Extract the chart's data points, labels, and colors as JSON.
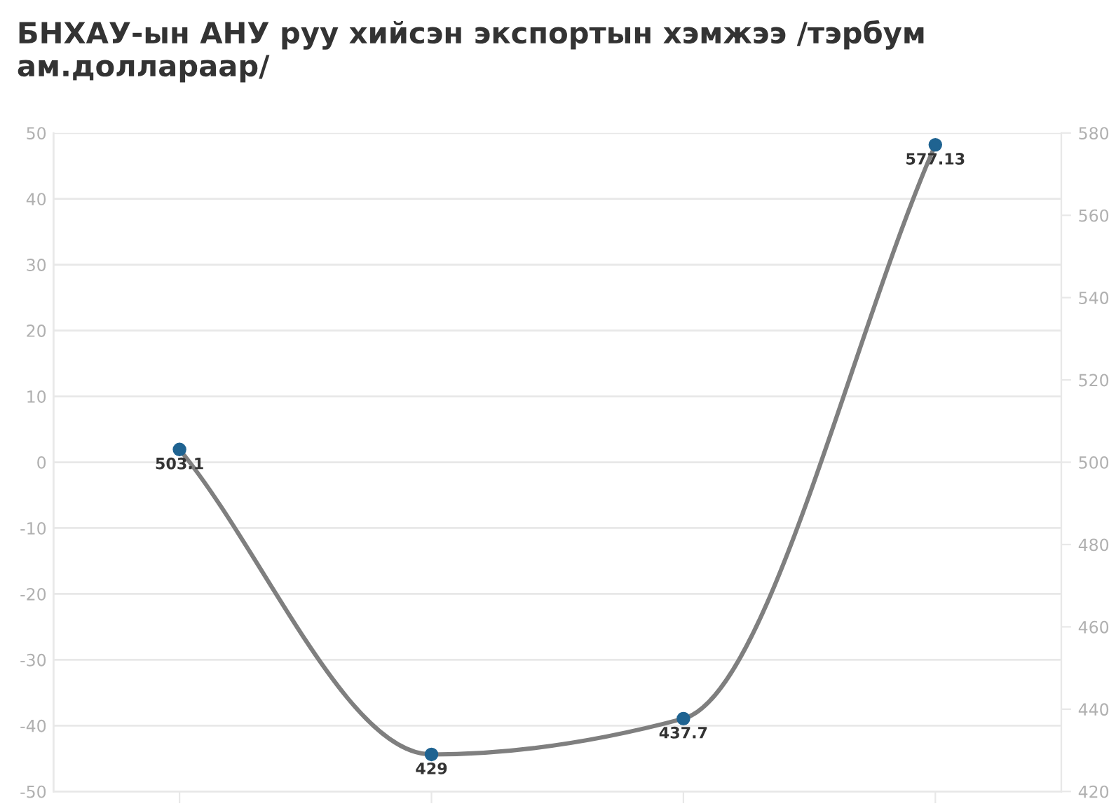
{
  "chart_data": {
    "type": "line",
    "title": "БНХАУ-ын АНУ руу хийсэн экспортын хэмжээ /тэрбум ам.доллараар/",
    "categories": [
      null,
      null,
      null,
      null
    ],
    "series": [
      {
        "color": "#7f7f7f",
        "colors": [
          "#1f6391",
          "#1f6391",
          "#1f6391",
          "#1f6391"
        ],
        "axis": "y2",
        "values": [
          503.1,
          429,
          437.7,
          577.13
        ]
      }
    ],
    "marker": "circle",
    "data_labels": true,
    "ylim": [
      -50,
      50
    ],
    "yticks": [
      -50,
      -40,
      -30,
      -20,
      -10,
      0,
      10,
      20,
      30,
      40,
      50
    ],
    "y2lim": [
      420,
      580
    ],
    "y2ticks": [
      420,
      440,
      460,
      480,
      500,
      520,
      540,
      560,
      580
    ],
    "grid": "y"
  }
}
